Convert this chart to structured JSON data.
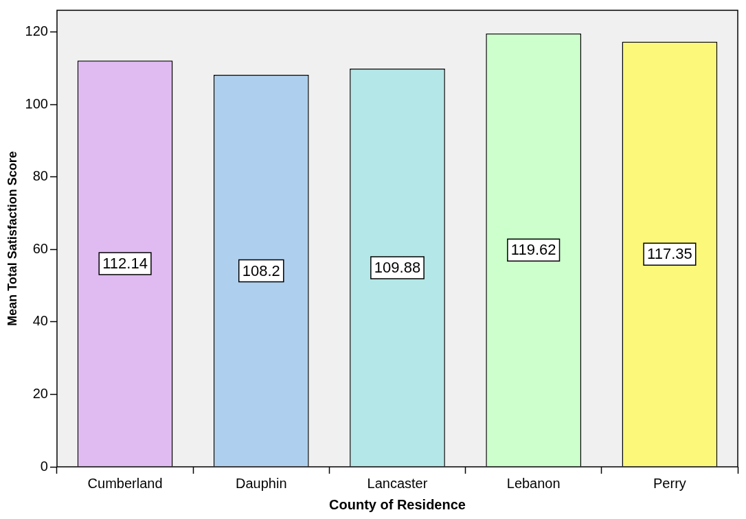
{
  "chart_data": {
    "type": "bar",
    "xlabel": "County of Residence",
    "ylabel": "Mean Total Satisfaction Score",
    "categories": [
      "Cumberland",
      "Dauphin",
      "Lancaster",
      "Lebanon",
      "Perry"
    ],
    "values": [
      112.14,
      108.2,
      109.88,
      119.62,
      117.35
    ],
    "colors": [
      "#dfbbf1",
      "#aed0ee",
      "#b4e7e7",
      "#ccffcc",
      "#fbf87a"
    ],
    "ylim": [
      0,
      126
    ],
    "yticks": [
      0,
      20,
      40,
      60,
      80,
      100,
      120
    ],
    "grid": false,
    "legend": false,
    "data_labels": true
  }
}
